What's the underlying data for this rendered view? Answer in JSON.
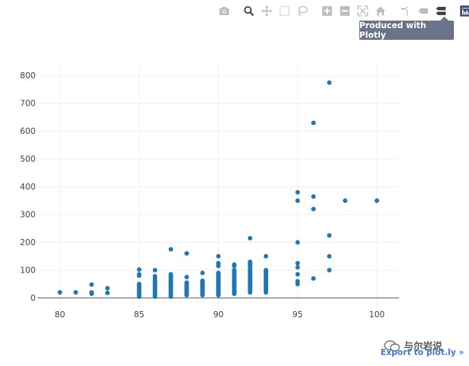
{
  "modebar": {
    "buttons": [
      {
        "icon": "camera-icon"
      },
      {
        "icon": "zoom-icon"
      },
      {
        "icon": "pan-icon"
      },
      {
        "icon": "box-select-icon"
      },
      {
        "icon": "lasso-select-icon"
      },
      {
        "icon": "zoom-in-icon"
      },
      {
        "icon": "zoom-out-icon"
      },
      {
        "icon": "autoscale-icon"
      },
      {
        "icon": "home-icon"
      },
      {
        "icon": "spike-lines-icon"
      },
      {
        "icon": "hover-closest-icon"
      },
      {
        "icon": "hover-compare-icon"
      },
      {
        "icon": "plotly-logo-icon"
      }
    ],
    "tooltip": "Produced with Plotly"
  },
  "export_link": "Export to plot.ly »",
  "watermark_text": "与尔岩说",
  "colors": {
    "marker": "#1f77b4",
    "grid": "#eeeeee",
    "axis_line": "#444444",
    "tick_text": "#444444",
    "tooltip_bg": "#69738a",
    "link": "#447adb"
  },
  "chart_data": {
    "type": "scatter",
    "title": "",
    "xlabel": "",
    "ylabel": "",
    "xlim": [
      78.6,
      101.4
    ],
    "ylim": [
      -35,
      835
    ],
    "xticks": [
      80,
      85,
      90,
      95,
      100
    ],
    "yticks": [
      0,
      100,
      200,
      300,
      400,
      500,
      600,
      700,
      800
    ],
    "grid": true,
    "legend": false,
    "points": [
      [
        80,
        20
      ],
      [
        81,
        20
      ],
      [
        82,
        48
      ],
      [
        82,
        20
      ],
      [
        82,
        15
      ],
      [
        83,
        35
      ],
      [
        83,
        18
      ],
      [
        85,
        102
      ],
      [
        85,
        85
      ],
      [
        85,
        80
      ],
      [
        85,
        50
      ],
      [
        85,
        45
      ],
      [
        85,
        40
      ],
      [
        85,
        35
      ],
      [
        85,
        30
      ],
      [
        85,
        25
      ],
      [
        85,
        20
      ],
      [
        85,
        15
      ],
      [
        85,
        10
      ],
      [
        85,
        5
      ],
      [
        86,
        100
      ],
      [
        86,
        78
      ],
      [
        86,
        70
      ],
      [
        86,
        60
      ],
      [
        86,
        55
      ],
      [
        86,
        50
      ],
      [
        86,
        45
      ],
      [
        86,
        40
      ],
      [
        86,
        35
      ],
      [
        86,
        30
      ],
      [
        86,
        25
      ],
      [
        86,
        20
      ],
      [
        86,
        15
      ],
      [
        86,
        10
      ],
      [
        86,
        5
      ],
      [
        87,
        175
      ],
      [
        87,
        85
      ],
      [
        87,
        80
      ],
      [
        87,
        75
      ],
      [
        87,
        70
      ],
      [
        87,
        65
      ],
      [
        87,
        60
      ],
      [
        87,
        55
      ],
      [
        87,
        50
      ],
      [
        87,
        45
      ],
      [
        87,
        40
      ],
      [
        87,
        35
      ],
      [
        87,
        30
      ],
      [
        87,
        25
      ],
      [
        87,
        20
      ],
      [
        87,
        15
      ],
      [
        87,
        10
      ],
      [
        87,
        5
      ],
      [
        88,
        160
      ],
      [
        88,
        75
      ],
      [
        88,
        55
      ],
      [
        88,
        50
      ],
      [
        88,
        45
      ],
      [
        88,
        40
      ],
      [
        88,
        35
      ],
      [
        88,
        30
      ],
      [
        88,
        25
      ],
      [
        88,
        20
      ],
      [
        88,
        15
      ],
      [
        88,
        10
      ],
      [
        89,
        90
      ],
      [
        89,
        62
      ],
      [
        89,
        58
      ],
      [
        89,
        54
      ],
      [
        89,
        50
      ],
      [
        89,
        45
      ],
      [
        89,
        40
      ],
      [
        89,
        35
      ],
      [
        89,
        30
      ],
      [
        89,
        25
      ],
      [
        89,
        20
      ],
      [
        89,
        15
      ],
      [
        89,
        10
      ],
      [
        90,
        150
      ],
      [
        90,
        125
      ],
      [
        90,
        120
      ],
      [
        90,
        115
      ],
      [
        90,
        90
      ],
      [
        90,
        85
      ],
      [
        90,
        80
      ],
      [
        90,
        75
      ],
      [
        90,
        70
      ],
      [
        90,
        65
      ],
      [
        90,
        60
      ],
      [
        90,
        55
      ],
      [
        90,
        50
      ],
      [
        90,
        45
      ],
      [
        90,
        40
      ],
      [
        90,
        35
      ],
      [
        90,
        30
      ],
      [
        90,
        25
      ],
      [
        90,
        20
      ],
      [
        90,
        15
      ],
      [
        90,
        10
      ],
      [
        91,
        120
      ],
      [
        91,
        115
      ],
      [
        91,
        100
      ],
      [
        91,
        95
      ],
      [
        91,
        90
      ],
      [
        91,
        85
      ],
      [
        91,
        80
      ],
      [
        91,
        75
      ],
      [
        91,
        70
      ],
      [
        91,
        65
      ],
      [
        91,
        60
      ],
      [
        91,
        55
      ],
      [
        91,
        50
      ],
      [
        91,
        45
      ],
      [
        91,
        40
      ],
      [
        91,
        35
      ],
      [
        91,
        30
      ],
      [
        91,
        25
      ],
      [
        91,
        20
      ],
      [
        91,
        15
      ],
      [
        92,
        215
      ],
      [
        92,
        130
      ],
      [
        92,
        125
      ],
      [
        92,
        120
      ],
      [
        92,
        115
      ],
      [
        92,
        110
      ],
      [
        92,
        100
      ],
      [
        92,
        95
      ],
      [
        92,
        90
      ],
      [
        92,
        85
      ],
      [
        92,
        80
      ],
      [
        92,
        75
      ],
      [
        92,
        70
      ],
      [
        92,
        65
      ],
      [
        92,
        60
      ],
      [
        92,
        55
      ],
      [
        92,
        50
      ],
      [
        92,
        45
      ],
      [
        92,
        40
      ],
      [
        92,
        35
      ],
      [
        92,
        30
      ],
      [
        92,
        25
      ],
      [
        92,
        20
      ],
      [
        93,
        150
      ],
      [
        93,
        100
      ],
      [
        93,
        95
      ],
      [
        93,
        90
      ],
      [
        93,
        85
      ],
      [
        93,
        80
      ],
      [
        93,
        75
      ],
      [
        93,
        70
      ],
      [
        93,
        65
      ],
      [
        93,
        60
      ],
      [
        93,
        55
      ],
      [
        93,
        50
      ],
      [
        93,
        45
      ],
      [
        93,
        40
      ],
      [
        93,
        35
      ],
      [
        93,
        30
      ],
      [
        93,
        25
      ],
      [
        93,
        20
      ],
      [
        95,
        380
      ],
      [
        95,
        350
      ],
      [
        95,
        200
      ],
      [
        95,
        125
      ],
      [
        95,
        110
      ],
      [
        95,
        85
      ],
      [
        95,
        60
      ],
      [
        95,
        50
      ],
      [
        96,
        630
      ],
      [
        96,
        365
      ],
      [
        96,
        320
      ],
      [
        96,
        70
      ],
      [
        97,
        775
      ],
      [
        97,
        225
      ],
      [
        97,
        150
      ],
      [
        97,
        100
      ],
      [
        98,
        350
      ],
      [
        100,
        350
      ]
    ]
  }
}
